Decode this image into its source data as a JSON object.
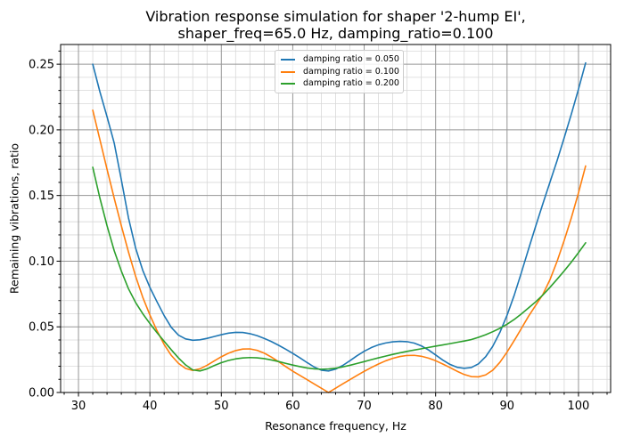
{
  "chart_data": {
    "type": "line",
    "title": "Vibration response simulation for shaper '2-hump EI',\nshaper_freq=65.0 Hz, damping_ratio=0.100",
    "title_line1": "Vibration response simulation for shaper '2-hump EI',",
    "title_line2": "shaper_freq=65.0 Hz, damping_ratio=0.100",
    "xlabel": "Resonance frequency, Hz",
    "ylabel": "Remaining vibrations, ratio",
    "xlim": [
      27.5,
      104.5
    ],
    "ylim": [
      0,
      0.265
    ],
    "x_major_ticks": [
      30,
      40,
      50,
      60,
      70,
      80,
      90,
      100
    ],
    "x_minor_step": 2,
    "y_major_ticks": [
      0.0,
      0.05,
      0.1,
      0.15,
      0.2,
      0.25
    ],
    "y_minor_step": 0.01,
    "grid": "both",
    "legend_position": "upper center",
    "x": [
      32,
      33,
      34,
      35,
      36,
      37,
      38,
      39,
      40,
      41,
      42,
      43,
      44,
      45,
      46,
      47,
      48,
      49,
      50,
      51,
      52,
      53,
      54,
      55,
      56,
      57,
      58,
      59,
      60,
      61,
      62,
      63,
      64,
      65,
      66,
      67,
      68,
      69,
      70,
      71,
      72,
      73,
      74,
      75,
      76,
      77,
      78,
      79,
      80,
      81,
      82,
      83,
      84,
      85,
      86,
      87,
      88,
      89,
      90,
      91,
      92,
      93,
      94,
      95,
      96,
      97,
      98,
      99,
      100,
      101
    ],
    "series": [
      {
        "label": "damping ratio = 0.050",
        "color": "#1f77b4",
        "values": [
          0.25,
          0.229,
          0.21,
          0.19,
          0.162,
          0.133,
          0.11,
          0.093,
          0.08,
          0.069,
          0.0585,
          0.0495,
          0.0437,
          0.0408,
          0.0398,
          0.0401,
          0.0412,
          0.0426,
          0.044,
          0.0452,
          0.0458,
          0.0457,
          0.0448,
          0.0433,
          0.0412,
          0.0388,
          0.036,
          0.033,
          0.0298,
          0.0264,
          0.0228,
          0.0194,
          0.017,
          0.0164,
          0.0178,
          0.0206,
          0.0242,
          0.028,
          0.0314,
          0.0342,
          0.0363,
          0.0377,
          0.0386,
          0.0389,
          0.0387,
          0.0376,
          0.0355,
          0.0324,
          0.0286,
          0.0247,
          0.0214,
          0.0192,
          0.0184,
          0.019,
          0.0218,
          0.0272,
          0.0352,
          0.0458,
          0.0588,
          0.074,
          0.0912,
          0.109,
          0.1265,
          0.1435,
          0.16,
          0.1765,
          0.194,
          0.212,
          0.231,
          0.251
        ]
      },
      {
        "label": "damping ratio = 0.100",
        "color": "#ff7f0e",
        "values": [
          0.215,
          0.1925,
          0.17,
          0.148,
          0.127,
          0.107,
          0.0885,
          0.0725,
          0.059,
          0.047,
          0.0365,
          0.0282,
          0.0222,
          0.0183,
          0.0168,
          0.018,
          0.0207,
          0.024,
          0.0272,
          0.0299,
          0.0319,
          0.0331,
          0.0332,
          0.0321,
          0.03,
          0.027,
          0.0235,
          0.0198,
          0.0162,
          0.013,
          0.0098,
          0.0065,
          0.0033,
          0.0,
          0.0033,
          0.0066,
          0.0098,
          0.013,
          0.0161,
          0.019,
          0.0217,
          0.0241,
          0.026,
          0.0274,
          0.0282,
          0.0283,
          0.0276,
          0.0262,
          0.0242,
          0.0217,
          0.019,
          0.0162,
          0.0137,
          0.0121,
          0.0119,
          0.0134,
          0.017,
          0.023,
          0.0308,
          0.0395,
          0.0487,
          0.058,
          0.0663,
          0.0745,
          0.0858,
          0.0998,
          0.1158,
          0.133,
          0.152,
          0.1725
        ]
      },
      {
        "label": "damping ratio = 0.200",
        "color": "#2ca02c",
        "values": [
          0.1715,
          0.148,
          0.127,
          0.108,
          0.0925,
          0.079,
          0.0685,
          0.06,
          0.0525,
          0.0455,
          0.039,
          0.0325,
          0.0263,
          0.021,
          0.0172,
          0.0164,
          0.018,
          0.0205,
          0.0227,
          0.0244,
          0.0256,
          0.0263,
          0.0266,
          0.0264,
          0.0258,
          0.0248,
          0.0236,
          0.0222,
          0.0209,
          0.0197,
          0.0187,
          0.018,
          0.0177,
          0.0179,
          0.0185,
          0.0195,
          0.0207,
          0.0221,
          0.0235,
          0.025,
          0.0264,
          0.0277,
          0.029,
          0.0302,
          0.0313,
          0.0323,
          0.0333,
          0.0343,
          0.0353,
          0.0362,
          0.0372,
          0.0382,
          0.0392,
          0.0403,
          0.042,
          0.044,
          0.0463,
          0.0489,
          0.052,
          0.0556,
          0.0598,
          0.0644,
          0.069,
          0.0742,
          0.08,
          0.0862,
          0.0926,
          0.0993,
          0.1065,
          0.114
        ]
      }
    ]
  },
  "colors": {
    "major_grid": "#969696",
    "minor_grid": "#d8d8d8",
    "spine": "#000000",
    "tick_text": "#000000",
    "background": "#ffffff"
  }
}
